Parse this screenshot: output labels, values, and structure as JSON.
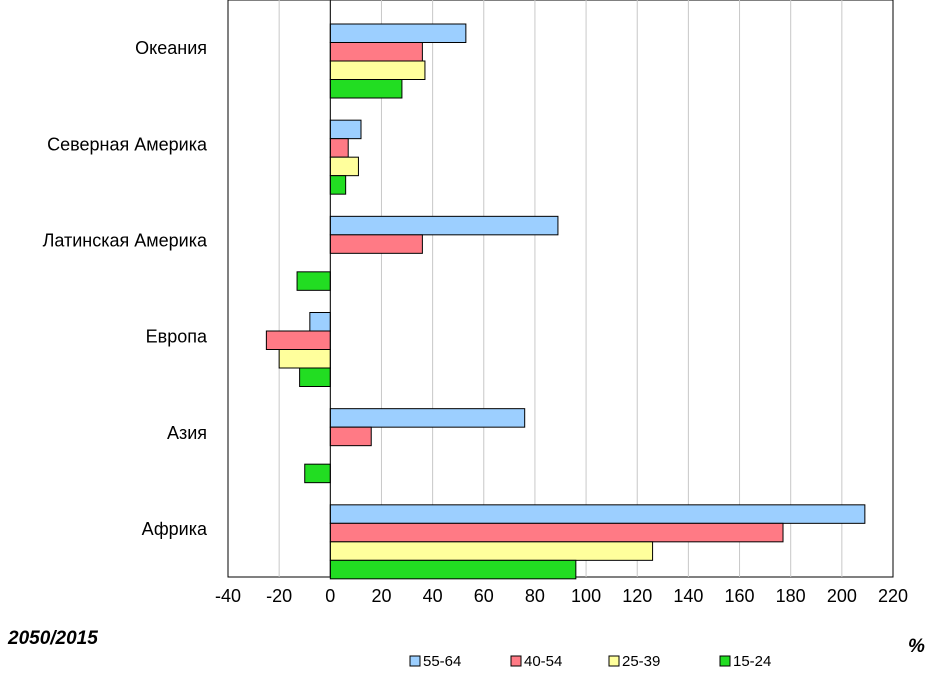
{
  "chart_data": {
    "type": "bar",
    "orientation": "horizontal",
    "categories": [
      "Океания",
      "Северная Америка",
      "Латинская Америка",
      "Европа",
      "Азия",
      "Африка"
    ],
    "series": [
      {
        "name": "55-64",
        "color": "#9ccfff",
        "values": [
          53,
          12,
          89,
          -8,
          76,
          209
        ]
      },
      {
        "name": "40-54",
        "color": "#ff7a85",
        "values": [
          36,
          7,
          36,
          -25,
          16,
          177
        ]
      },
      {
        "name": "25-39",
        "color": "#ffff9c",
        "values": [
          37,
          11,
          0,
          -20,
          0,
          126
        ]
      },
      {
        "name": "15-24",
        "color": "#22dd22",
        "values": [
          28,
          6,
          -13,
          -12,
          -10,
          96
        ]
      }
    ],
    "xlim": [
      -40,
      220
    ],
    "xticks": [
      "-40",
      "-20",
      "0",
      "20",
      "40",
      "60",
      "80",
      "100",
      "120",
      "140",
      "160",
      "180",
      "200",
      "220"
    ],
    "grid": "vertical",
    "legend_position": "bottom",
    "corner_left": "2050/2015",
    "corner_right": "%"
  }
}
